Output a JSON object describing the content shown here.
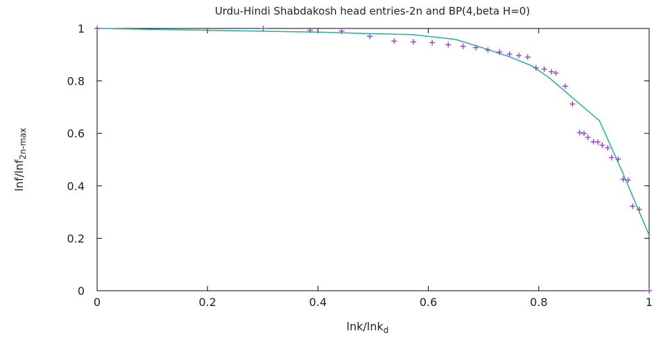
{
  "chart_data": {
    "type": "scatter",
    "title": "Urdu-Hindi Shabdakosh head entries-2n and BP(4,beta H=0)",
    "xlabel": "lnk/lnk",
    "xlabel_sub": "d",
    "ylabel": "lnf/lnf",
    "ylabel_sub": "2n-max",
    "xlim": [
      0,
      1
    ],
    "ylim": [
      0,
      1
    ],
    "x_ticks": [
      0,
      0.2,
      0.4,
      0.6,
      0.8,
      1
    ],
    "x_tick_labels": [
      "0",
      "0.2",
      "0.4",
      "0.6",
      "0.8",
      "1"
    ],
    "y_ticks": [
      0,
      0.2,
      0.4,
      0.6,
      0.8,
      1
    ],
    "y_tick_labels": [
      "0",
      "0.2",
      "0.4",
      "0.6",
      "0.8",
      "1"
    ],
    "grid": false,
    "legend": "none",
    "series": [
      {
        "kind": "points",
        "marker": "plus",
        "color": "#9b30d9",
        "points": [
          [
            0.0,
            1.0
          ],
          [
            0.301,
            1.0
          ],
          [
            0.386,
            0.993
          ],
          [
            0.443,
            0.99
          ],
          [
            0.494,
            0.97
          ],
          [
            0.538,
            0.952
          ],
          [
            0.573,
            0.949
          ],
          [
            0.607,
            0.946
          ],
          [
            0.636,
            0.938
          ],
          [
            0.663,
            0.932
          ],
          [
            0.686,
            0.927
          ],
          [
            0.708,
            0.918
          ],
          [
            0.729,
            0.91
          ],
          [
            0.747,
            0.902
          ],
          [
            0.764,
            0.897
          ],
          [
            0.78,
            0.891
          ],
          [
            0.795,
            0.85
          ],
          [
            0.81,
            0.845
          ],
          [
            0.823,
            0.835
          ],
          [
            0.831,
            0.83
          ],
          [
            0.848,
            0.78
          ],
          [
            0.861,
            0.712
          ],
          [
            0.874,
            0.603
          ],
          [
            0.882,
            0.6
          ],
          [
            0.889,
            0.585
          ],
          [
            0.899,
            0.568
          ],
          [
            0.907,
            0.567
          ],
          [
            0.915,
            0.555
          ],
          [
            0.925,
            0.545
          ],
          [
            0.932,
            0.508
          ],
          [
            0.944,
            0.502
          ],
          [
            0.953,
            0.425
          ],
          [
            0.962,
            0.422
          ],
          [
            0.97,
            0.322
          ],
          [
            0.982,
            0.31
          ],
          [
            1.0,
            0.0
          ]
        ]
      },
      {
        "kind": "line",
        "color": "#20b0a0",
        "points": [
          [
            0.0,
            1.0
          ],
          [
            0.2,
            0.993
          ],
          [
            0.4,
            0.986
          ],
          [
            0.5,
            0.98
          ],
          [
            0.57,
            0.977
          ],
          [
            0.62,
            0.965
          ],
          [
            0.65,
            0.958
          ],
          [
            0.7,
            0.925
          ],
          [
            0.75,
            0.89
          ],
          [
            0.79,
            0.855
          ],
          [
            0.82,
            0.81
          ],
          [
            0.87,
            0.72
          ],
          [
            0.91,
            0.648
          ],
          [
            0.95,
            0.46
          ],
          [
            1.0,
            0.212
          ]
        ]
      }
    ]
  }
}
